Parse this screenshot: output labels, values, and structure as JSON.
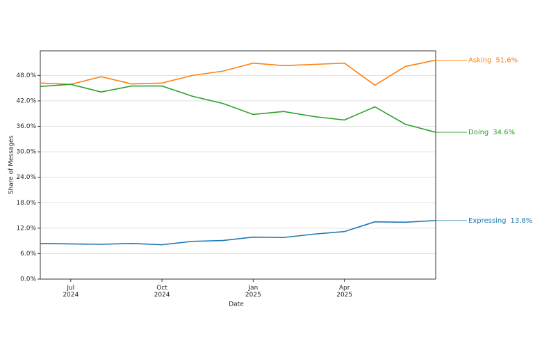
{
  "chart_data": {
    "type": "line",
    "x_label": "Date",
    "y_label": "Share of Messages",
    "x": [
      "2024-06",
      "2024-07",
      "2024-08",
      "2024-09",
      "2024-10",
      "2024-11",
      "2024-12",
      "2025-01",
      "2025-02",
      "2025-03",
      "2025-04",
      "2025-05",
      "2025-06",
      "2025-07"
    ],
    "xlim": [
      "2024-06",
      "2025-07"
    ],
    "xticks": [
      {
        "value": "2024-07",
        "label": "Jul 2024"
      },
      {
        "value": "2024-10",
        "label": "Oct 2024"
      },
      {
        "value": "2025-01",
        "label": "Jan 2025"
      },
      {
        "value": "2025-04",
        "label": "Apr 2025"
      }
    ],
    "ylim": [
      0,
      53.8
    ],
    "yticks": [
      {
        "value": 0,
        "label": "0.0%"
      },
      {
        "value": 6,
        "label": "6.0%"
      },
      {
        "value": 12,
        "label": "12.0%"
      },
      {
        "value": 18,
        "label": "18.0%"
      },
      {
        "value": 24,
        "label": "24.0%"
      },
      {
        "value": 30,
        "label": "30.0%"
      },
      {
        "value": 36,
        "label": "36.0%"
      },
      {
        "value": 42,
        "label": "42.0%"
      },
      {
        "value": 48,
        "label": "48.0%"
      }
    ],
    "grid": true,
    "series": [
      {
        "name": "Asking",
        "color": "#ff7f0e",
        "values": [
          46.2,
          45.9,
          47.7,
          46.0,
          46.2,
          48.0,
          49.0,
          50.9,
          50.3,
          50.6,
          50.9,
          45.7,
          50.1,
          51.6
        ],
        "value_labels": [
          null,
          null,
          null,
          null,
          null,
          null,
          null,
          null,
          null,
          null,
          null,
          null,
          null,
          "51.6%"
        ]
      },
      {
        "name": "Doing",
        "color": "#2ca02c",
        "values": [
          45.4,
          45.9,
          44.1,
          45.5,
          45.5,
          43.1,
          41.4,
          38.8,
          39.5,
          38.3,
          37.5,
          40.6,
          36.5,
          34.6
        ],
        "value_labels": [
          null,
          null,
          null,
          null,
          null,
          null,
          null,
          null,
          null,
          null,
          null,
          null,
          null,
          "34.6%"
        ]
      },
      {
        "name": "Expressing",
        "color": "#1f77b4",
        "values": [
          8.4,
          8.3,
          8.2,
          8.4,
          8.1,
          8.9,
          9.1,
          9.9,
          9.8,
          10.6,
          11.2,
          13.5,
          13.4,
          13.8
        ],
        "value_labels": [
          null,
          null,
          null,
          null,
          null,
          null,
          null,
          null,
          null,
          null,
          null,
          null,
          null,
          "13.8%"
        ]
      }
    ]
  }
}
